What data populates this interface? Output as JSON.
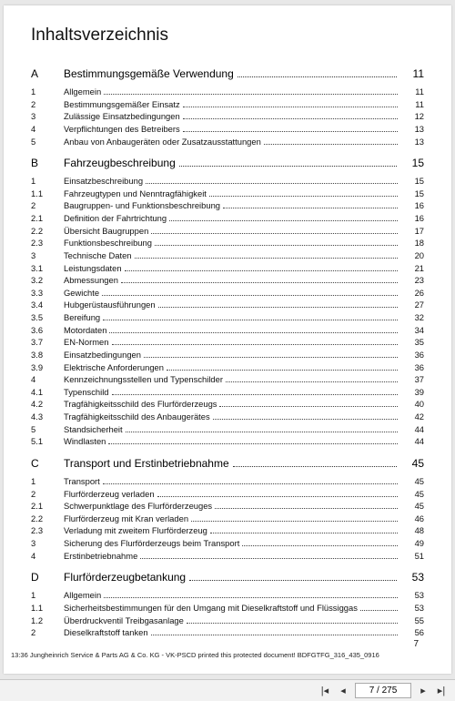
{
  "title": "Inhaltsverzeichnis",
  "sections": [
    {
      "key": "A",
      "label": "Bestimmungsgemäße Verwendung",
      "page": "11",
      "items": [
        {
          "num": "1",
          "label": "Allgemein",
          "page": "11"
        },
        {
          "num": "2",
          "label": "Bestimmungsgemäßer Einsatz",
          "page": "11"
        },
        {
          "num": "3",
          "label": "Zulässige Einsatzbedingungen",
          "page": "12"
        },
        {
          "num": "4",
          "label": "Verpflichtungen des Betreibers",
          "page": "13"
        },
        {
          "num": "5",
          "label": "Anbau von Anbaugeräten oder Zusatzausstattungen",
          "page": "13"
        }
      ]
    },
    {
      "key": "B",
      "label": "Fahrzeugbeschreibung",
      "page": "15",
      "items": [
        {
          "num": "1",
          "label": "Einsatzbeschreibung",
          "page": "15"
        },
        {
          "num": "1.1",
          "label": "Fahrzeugtypen und Nenntragfähigkeit",
          "page": "15"
        },
        {
          "num": "2",
          "label": "Baugruppen- und Funktionsbeschreibung",
          "page": "16"
        },
        {
          "num": "2.1",
          "label": "Definition der Fahrtrichtung",
          "page": "16"
        },
        {
          "num": "2.2",
          "label": "Übersicht Baugruppen",
          "page": "17"
        },
        {
          "num": "2.3",
          "label": "Funktionsbeschreibung",
          "page": "18"
        },
        {
          "num": "3",
          "label": "Technische Daten",
          "page": "20"
        },
        {
          "num": "3.1",
          "label": "Leistungsdaten",
          "page": "21"
        },
        {
          "num": "3.2",
          "label": "Abmessungen",
          "page": "23"
        },
        {
          "num": "3.3",
          "label": "Gewichte",
          "page": "26"
        },
        {
          "num": "3.4",
          "label": "Hubgerüstausführungen",
          "page": "27"
        },
        {
          "num": "3.5",
          "label": "Bereifung",
          "page": "32"
        },
        {
          "num": "3.6",
          "label": "Motordaten",
          "page": "34"
        },
        {
          "num": "3.7",
          "label": "EN-Normen",
          "page": "35"
        },
        {
          "num": "3.8",
          "label": "Einsatzbedingungen",
          "page": "36"
        },
        {
          "num": "3.9",
          "label": "Elektrische Anforderungen",
          "page": "36"
        },
        {
          "num": "4",
          "label": "Kennzeichnungsstellen und Typenschilder",
          "page": "37"
        },
        {
          "num": "4.1",
          "label": "Typenschild",
          "page": "39"
        },
        {
          "num": "4.2",
          "label": "Tragfähigkeitsschild des Flurförderzeugs",
          "page": "40"
        },
        {
          "num": "4.3",
          "label": "Tragfähigkeitsschild des Anbaugerätes",
          "page": "42"
        },
        {
          "num": "5",
          "label": "Standsicherheit",
          "page": "44"
        },
        {
          "num": "5.1",
          "label": "Windlasten",
          "page": "44"
        }
      ]
    },
    {
      "key": "C",
      "label": "Transport und Erstinbetriebnahme",
      "page": "45",
      "items": [
        {
          "num": "1",
          "label": "Transport",
          "page": "45"
        },
        {
          "num": "2",
          "label": "Flurförderzeug verladen",
          "page": "45"
        },
        {
          "num": "2.1",
          "label": "Schwerpunktlage des Flurförderzeuges",
          "page": "45"
        },
        {
          "num": "2.2",
          "label": "Flurförderzeug mit Kran verladen",
          "page": "46"
        },
        {
          "num": "2.3",
          "label": "Verladung mit zweitem Flurförderzeug",
          "page": "48"
        },
        {
          "num": "3",
          "label": "Sicherung des Flurförderzeugs beim Transport",
          "page": "49"
        },
        {
          "num": "4",
          "label": "Erstinbetriebnahme",
          "page": "51"
        }
      ]
    },
    {
      "key": "D",
      "label": "Flurförderzeugbetankung",
      "page": "53",
      "items": [
        {
          "num": "1",
          "label": "Allgemein",
          "page": "53"
        },
        {
          "num": "1.1",
          "label": "Sicherheitsbestimmungen für den Umgang mit Dieselkraftstoff und Flüssiggas",
          "page": "53"
        },
        {
          "num": "1.2",
          "label": "Überdruckventil Treibgasanlage",
          "page": "55"
        },
        {
          "num": "2",
          "label": "Dieselkraftstoff tanken",
          "page": "56"
        }
      ]
    }
  ],
  "footer_print": "13:36 Jungheinrich Service & Parts AG & Co. KG - VK-PSCD printed this protected document! BDFGTFG_316_435_0916",
  "footer_pagenum": "7",
  "nav": {
    "first": "⏮",
    "prev": "◀",
    "page_display": "7 / 275",
    "next": "▶",
    "last": "⏭"
  }
}
